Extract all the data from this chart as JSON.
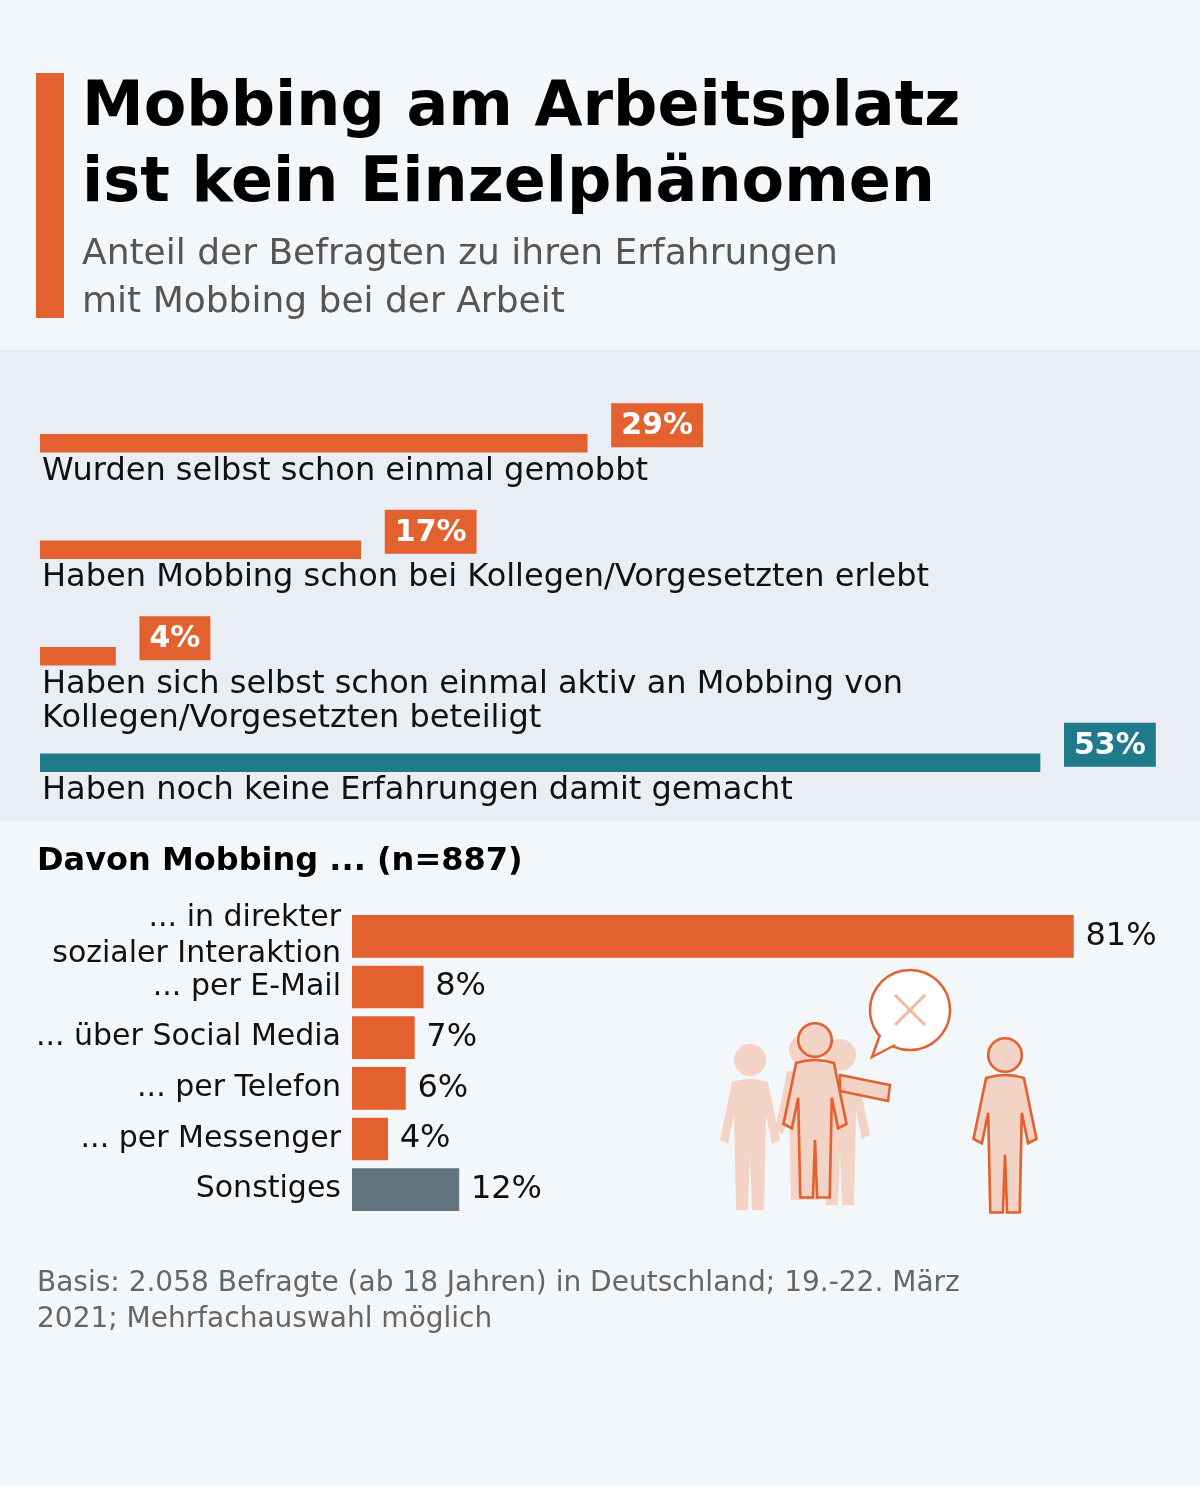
{
  "chart_data": [
    {
      "type": "bar",
      "orientation": "horizontal",
      "title": "Mobbing am Arbeitsplatz ist kein Einzelphänomen",
      "subtitle": "Anteil der Befragten zu ihren Erfahrungen mit Mobbing bei der Arbeit",
      "categories": [
        "Wurden selbst schon einmal gemobbt",
        "Haben Mobbing schon bei Kollegen/Vorgesetzten erlebt",
        "Haben sich selbst schon einmal aktiv an Mobbing von Kollegen/Vorgesetzten beteiligt",
        "Haben noch keine Erfahrungen damit gemacht"
      ],
      "values": [
        29,
        17,
        4,
        53
      ],
      "colors": [
        "#e3612e",
        "#e3612e",
        "#e3612e",
        "#1f7a8c"
      ],
      "value_labels": [
        "29%",
        "17%",
        "4%",
        "53%"
      ]
    },
    {
      "type": "bar",
      "orientation": "horizontal",
      "title": "Davon Mobbing ... (n=887)",
      "categories": [
        "... in direkter sozialer Interaktion",
        "... per E-Mail",
        "... über Social Media",
        "... per Telefon",
        "... per Messenger",
        "Sonstiges"
      ],
      "values": [
        81,
        8,
        7,
        6,
        4,
        12
      ],
      "colors": [
        "#e3612e",
        "#e3612e",
        "#e3612e",
        "#e3612e",
        "#e3612e",
        "#62747f"
      ],
      "value_labels": [
        "81%",
        "8%",
        "7%",
        "6%",
        "4%",
        "12%"
      ],
      "annotations": [
        "Basis: 2.058 Befragte (ab 18 Jahren) in Deutschland; 19.-22. März 2021; Mehrfachauswahl möglich"
      ]
    }
  ]
}
